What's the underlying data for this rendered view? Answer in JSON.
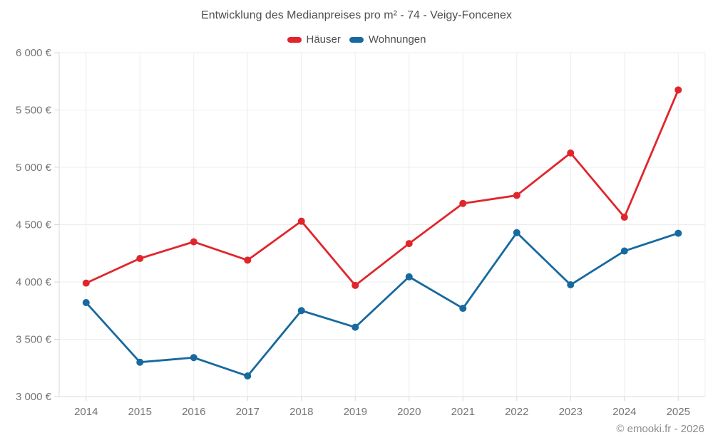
{
  "chart": {
    "title": "Entwicklung des Medianpreises pro m² - 74 - Veigy-Foncenex",
    "footer": "© emooki.fr - 2026",
    "colors": {
      "haeuser": "#e0262c",
      "wohnungen": "#17699f",
      "grid": "#ededed",
      "axis": "#d8d8d8",
      "tick_text": "#757575",
      "title_text": "#4f4f4f",
      "footer_text": "#8c8c8c"
    }
  },
  "chart_data": {
    "type": "line",
    "categories": [
      "2014",
      "2015",
      "2016",
      "2017",
      "2018",
      "2019",
      "2020",
      "2021",
      "2022",
      "2023",
      "2024",
      "2025"
    ],
    "series": [
      {
        "name": "Häuser",
        "color": "#e0262c",
        "values": [
          3990,
          4205,
          4350,
          4190,
          4530,
          3970,
          4335,
          4685,
          4755,
          5125,
          4565,
          5675
        ]
      },
      {
        "name": "Wohnungen",
        "color": "#17699f",
        "values": [
          3820,
          3300,
          3340,
          3180,
          3750,
          3605,
          4045,
          3770,
          4430,
          3975,
          4270,
          4425
        ]
      }
    ],
    "title": "Entwicklung des Medianpreises pro m² - 74 - Veigy-Foncenex",
    "xlabel": "",
    "ylabel": "",
    "ylim": [
      3000,
      6000
    ],
    "ytick_step": 500,
    "ytick_labels": [
      "3 000 €",
      "3 500 €",
      "4 000 €",
      "4 500 €",
      "5 000 €",
      "5 500 €",
      "6 000 €"
    ],
    "grid": true,
    "legend_position": "top",
    "annotation": "© emooki.fr - 2026"
  }
}
